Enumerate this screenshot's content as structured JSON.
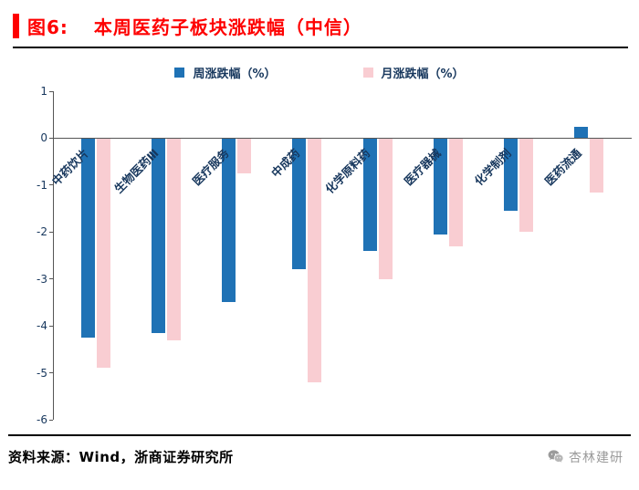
{
  "header": {
    "figure_label": "图6:",
    "title": "本周医药子板块涨跌幅（中信）"
  },
  "chart_data": {
    "type": "bar",
    "title": "本周医药子板块涨跌幅（中信）",
    "categories": [
      "中药饮片",
      "生物医药Ⅲ",
      "医疗服务",
      "中成药",
      "化学原料药",
      "医疗器械",
      "化学制剂",
      "医药流通"
    ],
    "series": [
      {
        "name": "周涨跌幅（%）",
        "color": "#1F72B5",
        "values": [
          -4.25,
          -4.15,
          -3.5,
          -2.8,
          -2.4,
          -2.05,
          -1.55,
          0.25
        ]
      },
      {
        "name": "月涨跌幅（%）",
        "color": "#F9CDD2",
        "values": [
          -4.9,
          -4.3,
          -0.75,
          -5.2,
          -3.0,
          -2.3,
          -2.0,
          -1.15
        ]
      }
    ],
    "xlabel": "",
    "ylabel": "",
    "ylim": [
      -6,
      1
    ],
    "yticks": [
      1,
      0,
      -1,
      -2,
      -3,
      -4,
      -5,
      -6
    ],
    "legend_position": "top",
    "grid": false
  },
  "footer": {
    "source": "资料来源：Wind，浙商证券研究所",
    "watermark": "杏林建研"
  },
  "colors": {
    "title_red": "#FE0000",
    "week_blue": "#1F72B5",
    "month_pink": "#F9CDD2",
    "axis_text": "#17375D",
    "axis_line": "#555555"
  }
}
